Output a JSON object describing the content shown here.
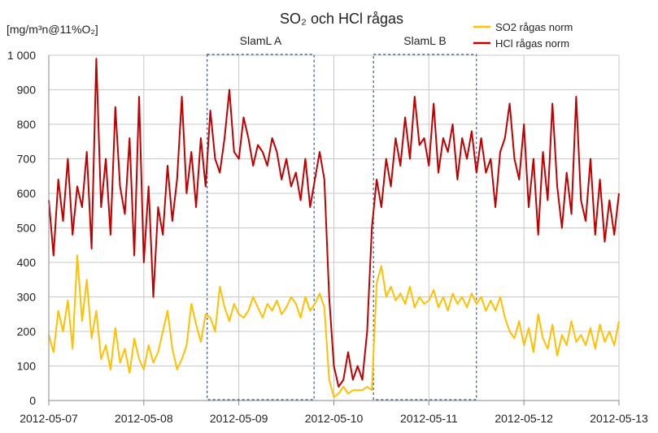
{
  "chart_data": {
    "type": "line",
    "title": "SO₂ och HCl rågas",
    "ylabel": "[mg/m³n@11%O₂]",
    "xlabel": "",
    "x_ticks": [
      "2012-05-07",
      "2012-05-08",
      "2012-05-09",
      "2012-05-10",
      "2012-05-11",
      "2012-05-12",
      "2012-05-13"
    ],
    "y_ticks": [
      "0",
      "100",
      "200",
      "300",
      "400",
      "500",
      "600",
      "700",
      "800",
      "900",
      "1 000"
    ],
    "xlim": [
      "2012-05-07",
      "2012-05-13"
    ],
    "ylim": [
      0,
      1000
    ],
    "grid": true,
    "legend_position": "top-right",
    "colors": {
      "so2": "#FFC000",
      "hcl": "#C00000",
      "box": "#2F5597"
    },
    "annotations": [
      {
        "label": "SlamL A",
        "x_start": "2012-05-08 16:00",
        "x_end": "2012-05-09 19:00",
        "y_range": [
          0,
          1000
        ]
      },
      {
        "label": "SlamL B",
        "x_start": "2012-05-10 10:00",
        "x_end": "2012-05-11 12:00",
        "y_range": [
          0,
          1000
        ]
      }
    ],
    "series": [
      {
        "name": "SO2 rågas norm",
        "x_unit": "days since 2012-05-07",
        "x": [
          0,
          0.05,
          0.1,
          0.15,
          0.2,
          0.25,
          0.3,
          0.35,
          0.4,
          0.45,
          0.5,
          0.55,
          0.6,
          0.65,
          0.7,
          0.75,
          0.8,
          0.85,
          0.9,
          0.95,
          1.0,
          1.05,
          1.1,
          1.15,
          1.2,
          1.25,
          1.3,
          1.35,
          1.4,
          1.45,
          1.5,
          1.55,
          1.6,
          1.65,
          1.7,
          1.75,
          1.8,
          1.85,
          1.9,
          1.95,
          2.0,
          2.05,
          2.1,
          2.15,
          2.2,
          2.25,
          2.3,
          2.35,
          2.4,
          2.45,
          2.5,
          2.55,
          2.6,
          2.65,
          2.7,
          2.75,
          2.8,
          2.85,
          2.9,
          2.95,
          3.0,
          3.05,
          3.1,
          3.15,
          3.2,
          3.25,
          3.3,
          3.35,
          3.4,
          3.45,
          3.5,
          3.55,
          3.6,
          3.65,
          3.7,
          3.75,
          3.8,
          3.85,
          3.9,
          3.95,
          4.0,
          4.05,
          4.1,
          4.15,
          4.2,
          4.25,
          4.3,
          4.35,
          4.4,
          4.45,
          4.5,
          4.55,
          4.6,
          4.65,
          4.7,
          4.75,
          4.8,
          4.85,
          4.9,
          4.95,
          5.0,
          5.05,
          5.1,
          5.15,
          5.2,
          5.25,
          5.3,
          5.35,
          5.4,
          5.45,
          5.5,
          5.55,
          5.6,
          5.65,
          5.7,
          5.75,
          5.8,
          5.85,
          5.9,
          5.95,
          6.0
        ],
        "y": [
          190,
          140,
          260,
          200,
          290,
          150,
          420,
          230,
          350,
          180,
          260,
          120,
          160,
          90,
          210,
          110,
          150,
          80,
          180,
          120,
          90,
          160,
          110,
          140,
          200,
          260,
          150,
          90,
          120,
          160,
          280,
          220,
          170,
          250,
          240,
          200,
          330,
          270,
          230,
          280,
          250,
          240,
          260,
          300,
          270,
          240,
          280,
          260,
          290,
          250,
          270,
          300,
          280,
          240,
          300,
          260,
          280,
          310,
          270,
          60,
          10,
          20,
          40,
          20,
          30,
          30,
          30,
          40,
          30,
          340,
          390,
          300,
          330,
          290,
          310,
          280,
          330,
          270,
          300,
          280,
          290,
          320,
          270,
          300,
          260,
          310,
          280,
          300,
          270,
          310,
          280,
          300,
          260,
          290,
          260,
          300,
          240,
          200,
          180,
          230,
          160,
          210,
          140,
          250,
          180,
          150,
          220,
          130,
          190,
          160,
          230,
          170,
          190,
          160,
          210,
          150,
          220,
          170,
          200,
          160,
          230
        ]
      },
      {
        "name": "HCl rågas norm",
        "x_unit": "days since 2012-05-07",
        "x": [
          0,
          0.05,
          0.1,
          0.15,
          0.2,
          0.25,
          0.3,
          0.35,
          0.4,
          0.45,
          0.5,
          0.55,
          0.6,
          0.65,
          0.7,
          0.75,
          0.8,
          0.85,
          0.9,
          0.95,
          1.0,
          1.05,
          1.1,
          1.15,
          1.2,
          1.25,
          1.3,
          1.35,
          1.4,
          1.45,
          1.5,
          1.55,
          1.6,
          1.65,
          1.7,
          1.75,
          1.8,
          1.85,
          1.9,
          1.95,
          2.0,
          2.05,
          2.1,
          2.15,
          2.2,
          2.25,
          2.3,
          2.35,
          2.4,
          2.45,
          2.5,
          2.55,
          2.6,
          2.65,
          2.7,
          2.75,
          2.8,
          2.85,
          2.9,
          2.95,
          3.0,
          3.05,
          3.1,
          3.15,
          3.2,
          3.25,
          3.3,
          3.35,
          3.4,
          3.45,
          3.5,
          3.55,
          3.6,
          3.65,
          3.7,
          3.75,
          3.8,
          3.85,
          3.9,
          3.95,
          4.0,
          4.05,
          4.1,
          4.15,
          4.2,
          4.25,
          4.3,
          4.35,
          4.4,
          4.45,
          4.5,
          4.55,
          4.6,
          4.65,
          4.7,
          4.75,
          4.8,
          4.85,
          4.9,
          4.95,
          5.0,
          5.05,
          5.1,
          5.15,
          5.2,
          5.25,
          5.3,
          5.35,
          5.4,
          5.45,
          5.5,
          5.55,
          5.6,
          5.65,
          5.7,
          5.75,
          5.8,
          5.85,
          5.9,
          5.95,
          6.0
        ],
        "y": [
          580,
          420,
          640,
          520,
          700,
          480,
          620,
          560,
          720,
          440,
          990,
          560,
          700,
          480,
          850,
          620,
          540,
          760,
          420,
          880,
          400,
          620,
          300,
          560,
          480,
          680,
          520,
          640,
          880,
          600,
          720,
          560,
          760,
          620,
          840,
          700,
          660,
          760,
          900,
          720,
          700,
          820,
          760,
          680,
          740,
          720,
          680,
          760,
          720,
          640,
          700,
          620,
          660,
          580,
          700,
          560,
          640,
          720,
          640,
          300,
          100,
          40,
          60,
          140,
          60,
          100,
          60,
          200,
          500,
          640,
          560,
          700,
          620,
          760,
          680,
          820,
          700,
          880,
          740,
          760,
          680,
          860,
          660,
          760,
          720,
          800,
          640,
          760,
          700,
          780,
          660,
          760,
          660,
          700,
          560,
          720,
          760,
          860,
          700,
          640,
          800,
          560,
          700,
          480,
          720,
          580,
          860,
          620,
          500,
          660,
          540,
          880,
          580,
          520,
          700,
          480,
          640,
          460,
          580,
          480,
          600
        ]
      }
    ]
  }
}
